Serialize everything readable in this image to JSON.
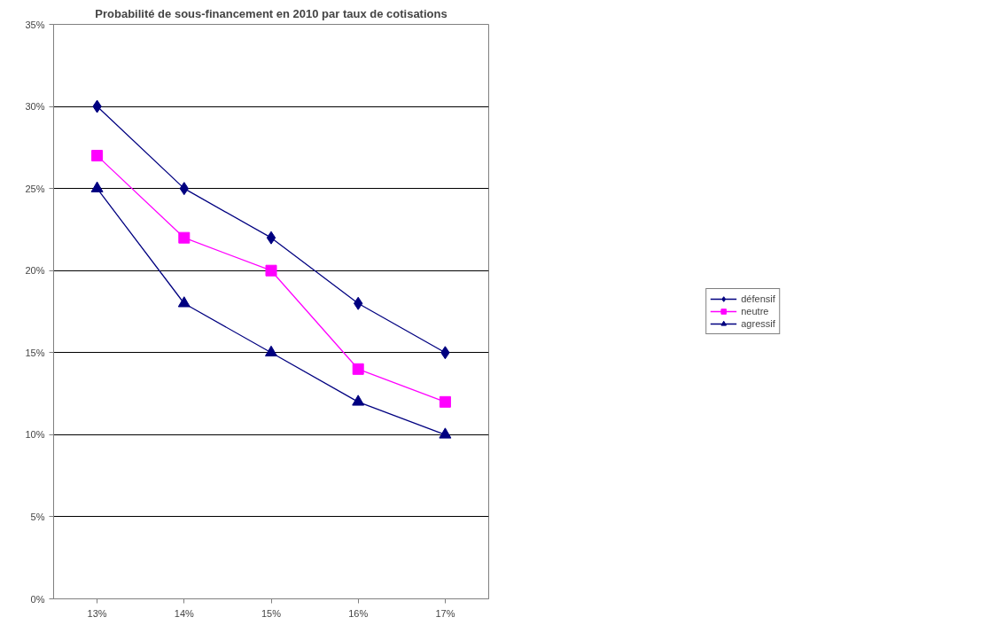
{
  "chart_data": {
    "type": "line",
    "title": "Probabilité de sous-financement en 2010 par taux de cotisations",
    "categories": [
      "13%",
      "14%",
      "15%",
      "16%",
      "17%"
    ],
    "series": [
      {
        "name": "défensif",
        "color": "#000080",
        "marker": "diamond",
        "values": [
          30,
          25,
          22,
          18,
          15
        ]
      },
      {
        "name": "neutre",
        "color": "#ff00ff",
        "marker": "square",
        "values": [
          27,
          22,
          20,
          14,
          12
        ]
      },
      {
        "name": "agressif",
        "color": "#000080",
        "marker": "triangle",
        "values": [
          25,
          18,
          15,
          12,
          10
        ]
      }
    ],
    "ylim": [
      0,
      35
    ],
    "yticks": [
      {
        "value": 0,
        "label": "0%"
      },
      {
        "value": 5,
        "label": "5%"
      },
      {
        "value": 10,
        "label": "10%"
      },
      {
        "value": 15,
        "label": "15%"
      },
      {
        "value": 20,
        "label": "20%"
      },
      {
        "value": 25,
        "label": "25%"
      },
      {
        "value": 30,
        "label": "30%"
      },
      {
        "value": 35,
        "label": "35%"
      }
    ],
    "grid": "y",
    "legend": "right",
    "line_style": "solid"
  }
}
